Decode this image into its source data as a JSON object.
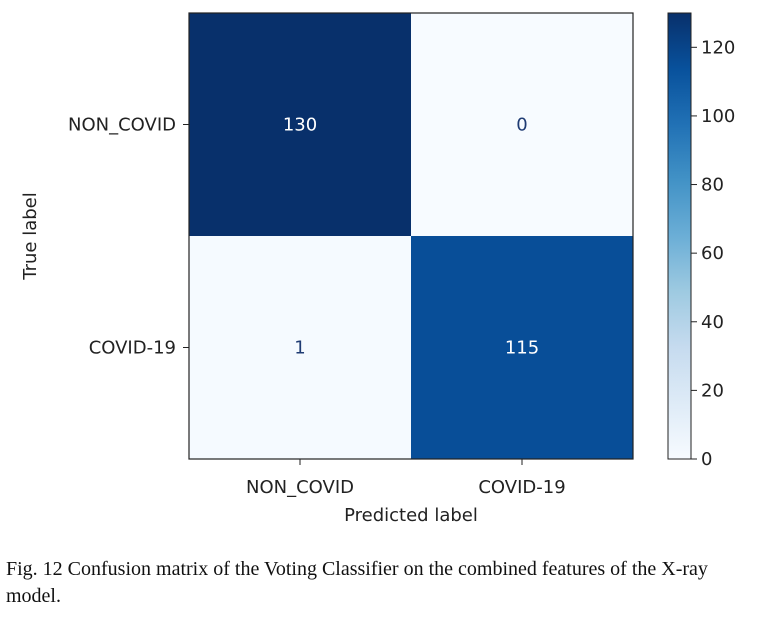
{
  "chart_data": {
    "type": "heatmap",
    "title": "",
    "xlabel": "Predicted label",
    "ylabel": "True label",
    "x_categories": [
      "NON_COVID",
      "COVID-19"
    ],
    "y_categories": [
      "NON_COVID",
      "COVID-19"
    ],
    "values": [
      [
        130,
        0
      ],
      [
        1,
        115
      ]
    ],
    "colormap": "Blues",
    "color_range": [
      0,
      130
    ],
    "colorbar_ticks": [
      0,
      20,
      40,
      60,
      80,
      100,
      120
    ],
    "grid": false
  },
  "caption": "Fig. 12  Confusion matrix of the Voting Classifier on the combined features of the X-ray model."
}
